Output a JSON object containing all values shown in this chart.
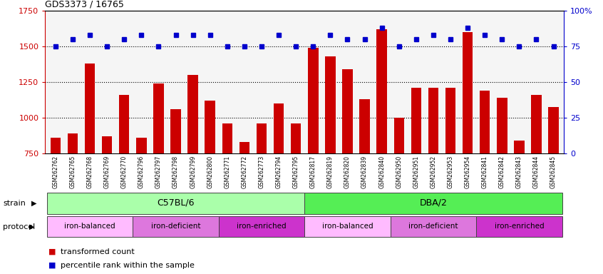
{
  "title": "GDS3373 / 16765",
  "samples": [
    "GSM262762",
    "GSM262765",
    "GSM262768",
    "GSM262769",
    "GSM262770",
    "GSM262796",
    "GSM262797",
    "GSM262798",
    "GSM262799",
    "GSM262800",
    "GSM262771",
    "GSM262772",
    "GSM262773",
    "GSM262794",
    "GSM262795",
    "GSM262817",
    "GSM262819",
    "GSM262820",
    "GSM262839",
    "GSM262840",
    "GSM262950",
    "GSM262951",
    "GSM262952",
    "GSM262953",
    "GSM262954",
    "GSM262841",
    "GSM262842",
    "GSM262843",
    "GSM262844",
    "GSM262845"
  ],
  "red_values": [
    860,
    890,
    1380,
    870,
    1160,
    860,
    1240,
    1060,
    1300,
    1120,
    960,
    830,
    960,
    1100,
    960,
    1490,
    1430,
    1340,
    1130,
    1620,
    1000,
    1210,
    1210,
    1210,
    1600,
    1190,
    1140,
    840,
    1160,
    1075
  ],
  "blue_values": [
    75,
    80,
    83,
    75,
    80,
    83,
    75,
    83,
    83,
    83,
    75,
    75,
    75,
    83,
    75,
    75,
    83,
    80,
    80,
    88,
    75,
    80,
    83,
    80,
    88,
    83,
    80,
    75,
    80,
    75
  ],
  "ylim_left": [
    750,
    1750
  ],
  "ylim_right": [
    0,
    100
  ],
  "yticks_left": [
    750,
    1000,
    1250,
    1500,
    1750
  ],
  "yticks_right": [
    0,
    25,
    50,
    75,
    100
  ],
  "bar_color": "#cc0000",
  "dot_color": "#0000cc",
  "bar_bottom": 750,
  "strain_groups": [
    {
      "label": "C57BL/6",
      "start": 0,
      "end": 14,
      "color": "#aaffaa"
    },
    {
      "label": "DBA/2",
      "start": 15,
      "end": 29,
      "color": "#55ee55"
    }
  ],
  "protocol_groups": [
    {
      "label": "iron-balanced",
      "start": 0,
      "end": 4,
      "type": "balanced"
    },
    {
      "label": "iron-deficient",
      "start": 5,
      "end": 9,
      "type": "deficient"
    },
    {
      "label": "iron-enriched",
      "start": 10,
      "end": 14,
      "type": "enriched"
    },
    {
      "label": "iron-balanced",
      "start": 15,
      "end": 19,
      "type": "balanced"
    },
    {
      "label": "iron-deficient",
      "start": 20,
      "end": 24,
      "type": "deficient"
    },
    {
      "label": "iron-enriched",
      "start": 25,
      "end": 29,
      "type": "enriched"
    }
  ],
  "prot_colors": {
    "balanced": "#ffbbff",
    "deficient": "#dd77dd",
    "enriched": "#cc33cc"
  },
  "grid_lines": [
    1000,
    1250,
    1500
  ],
  "bg_color": "#ffffff",
  "plot_bg": "#f5f5f5"
}
